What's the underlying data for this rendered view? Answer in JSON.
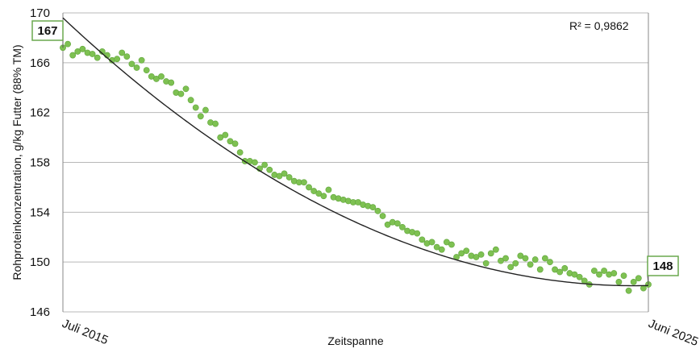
{
  "chart_data": {
    "type": "scatter",
    "xlabel": "Zeitspanne",
    "ylabel": "Rohproteinkonzentration, g/kg Futter (88% TM)",
    "x_tick_labels": [
      "Juli 2015",
      "Juni 2025"
    ],
    "xlim": [
      0,
      119
    ],
    "ylim": [
      146,
      170
    ],
    "y_ticks": [
      146,
      150,
      154,
      158,
      162,
      166,
      170
    ],
    "grid": "horizontal",
    "annotation_r2": "R² = 0,9862",
    "callout_start": "167",
    "callout_end": "148",
    "colors": {
      "points": "#7ec152",
      "points_edge": "#5fa43a",
      "trend": "#222222",
      "grid": "#b8b8b8",
      "callout_border": "#6aa84f"
    },
    "trend": {
      "type": "polynomial-2",
      "start_value": 169.6,
      "end_value": 148.2,
      "min_value": 148.1,
      "min_x": 116
    },
    "points_x_start": 0,
    "points_x_step": 1,
    "points_y": [
      167.2,
      167.5,
      166.6,
      166.9,
      167.1,
      166.8,
      166.7,
      166.4,
      166.9,
      166.6,
      166.2,
      166.3,
      166.8,
      166.5,
      165.9,
      165.6,
      166.2,
      165.4,
      164.9,
      164.7,
      164.9,
      164.5,
      164.4,
      163.6,
      163.5,
      163.9,
      163.0,
      162.4,
      161.7,
      162.2,
      161.2,
      161.1,
      160.0,
      160.2,
      159.7,
      159.5,
      158.8,
      158.1,
      158.1,
      158.0,
      157.5,
      157.8,
      157.4,
      157.0,
      156.9,
      157.1,
      156.8,
      156.5,
      156.4,
      156.4,
      156.0,
      155.7,
      155.5,
      155.3,
      155.8,
      155.2,
      155.1,
      155.0,
      154.9,
      154.8,
      154.8,
      154.6,
      154.5,
      154.4,
      154.1,
      153.7,
      153.0,
      153.2,
      153.1,
      152.8,
      152.5,
      152.4,
      152.3,
      151.8,
      151.5,
      151.6,
      151.2,
      151.0,
      151.6,
      151.4,
      150.4,
      150.7,
      150.9,
      150.5,
      150.4,
      150.6,
      149.9,
      150.7,
      151.0,
      150.1,
      150.3,
      149.6,
      149.9,
      150.5,
      150.3,
      149.8,
      150.2,
      149.4,
      150.3,
      150.0,
      149.4,
      149.2,
      149.5,
      149.1,
      149.0,
      148.8,
      148.5,
      148.2,
      149.3,
      149.0,
      149.3,
      149.0,
      149.1,
      148.4,
      148.9,
      147.7,
      148.4,
      148.7,
      147.9,
      148.2
    ]
  }
}
